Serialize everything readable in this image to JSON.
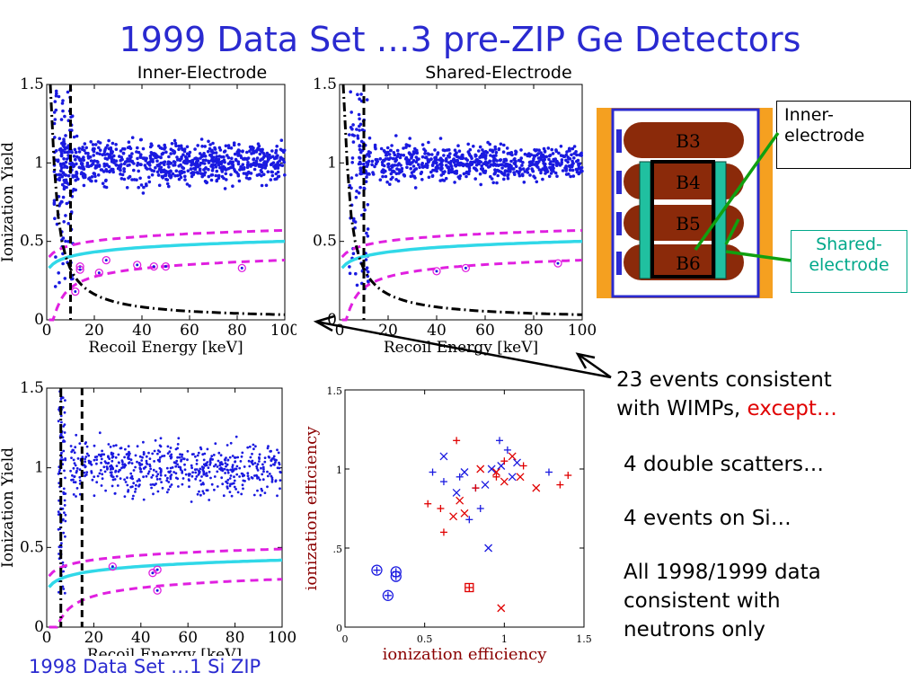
{
  "slide": {
    "title": "1999 Data Set  …3 pre-ZIP Ge Detectors",
    "subtitle_left": "Inner-Electrode",
    "subtitle_right": "Shared-Electrode",
    "bottom_caption": "1998 Data Set  …1 Si ZIP",
    "notes": {
      "line1a": "23 events consistent",
      "line1b_pre": "with WIMPs, ",
      "line1b_red": "except…",
      "line2": "4 double scatters…",
      "line3": "4 events on Si…",
      "line4a": "All 1998/1999 data",
      "line4b": "consistent with",
      "line4c": "neutrons only"
    },
    "detector": {
      "labels": [
        "B3",
        "B4",
        "B5",
        "B6"
      ],
      "callout_inner": [
        "Inner-",
        "electrode"
      ],
      "callout_shared": [
        "Shared-",
        "electrode"
      ]
    },
    "colors": {
      "title": "#2a2ad0",
      "points": "#1a1ae0",
      "magenta": "#e020e0",
      "cyan": "#30d8e8",
      "red": "#e00000",
      "orange": "#f5a020",
      "detector_brown": "#8b2a0a",
      "callout_green": "#00a88a",
      "arrow_green": "#10a010"
    }
  },
  "chart_data": [
    {
      "type": "scatter",
      "panel": "inner-electrode",
      "title": "Inner-Electrode",
      "xlabel": "Recoil Energy [keV]",
      "ylabel": "Ionization Yield",
      "xlim": [
        0,
        100
      ],
      "ylim": [
        0,
        1.5
      ],
      "xticks": [
        "0",
        "20",
        "40",
        "60",
        "80",
        "100"
      ],
      "yticks": [
        "0",
        "0.5",
        "1",
        "1.5"
      ],
      "circled_events": [
        [
          14,
          0.34
        ],
        [
          22,
          0.3
        ],
        [
          25,
          0.38
        ],
        [
          38,
          0.35
        ],
        [
          45,
          0.34
        ],
        [
          50,
          0.34
        ],
        [
          82,
          0.33
        ],
        [
          12,
          0.18
        ],
        [
          14,
          0.32
        ]
      ],
      "curves": [
        "nuclear-recoil band (cyan)",
        "band limits (magenta dashed)",
        "analysis threshold (black dashed)",
        "ionization threshold (black dash-dot)"
      ]
    },
    {
      "type": "scatter",
      "panel": "shared-electrode",
      "title": "Shared-Electrode",
      "xlabel": "Recoil Energy [keV]",
      "ylabel": "",
      "xlim": [
        0,
        100
      ],
      "ylim": [
        0,
        1.5
      ],
      "xticks": [
        "0",
        "20",
        "40",
        "60",
        "80",
        "100"
      ],
      "yticks": [
        "0",
        "0.5",
        "1",
        "1.5"
      ],
      "circled_events": [
        [
          40,
          0.31
        ],
        [
          52,
          0.33
        ],
        [
          90,
          0.36
        ]
      ]
    },
    {
      "type": "scatter",
      "panel": "si-zip-1998",
      "title": "",
      "xlabel": "Recoil Energy [keV]",
      "ylabel": "Ionization Yield",
      "xlim": [
        0,
        100
      ],
      "ylim": [
        0,
        1.5
      ],
      "xticks": [
        "0",
        "20",
        "40",
        "60",
        "80",
        "100"
      ],
      "yticks": [
        "0",
        "0.5",
        "1",
        "1.5"
      ],
      "circled_events": [
        [
          45,
          0.34
        ],
        [
          47,
          0.36
        ],
        [
          28,
          0.38
        ],
        [
          47,
          0.23
        ]
      ]
    },
    {
      "type": "scatter",
      "panel": "ionization-efficiency",
      "xlabel": "ionization efficiency",
      "ylabel": "ionization efficiency",
      "xlim": [
        0,
        1.5
      ],
      "ylim": [
        0,
        1.5
      ],
      "xticks": [
        "0",
        "0.5",
        "1",
        "1.5"
      ],
      "yticks": [
        "0",
        ".5",
        "1",
        "1.5"
      ],
      "series": [
        {
          "name": "",
          "color": "#1a1ae0",
          "marker": "plus",
          "points": [
            [
              0.55,
              0.98
            ],
            [
              0.62,
              0.92
            ],
            [
              0.72,
              0.95
            ],
            [
              0.82,
              0.88
            ],
            [
              0.85,
              0.75
            ],
            [
              0.97,
              1.18
            ],
            [
              1.02,
              1.12
            ],
            [
              1.28,
              0.98
            ],
            [
              0.78,
              0.68
            ]
          ]
        },
        {
          "name": "",
          "color": "#1a1ae0",
          "marker": "x",
          "points": [
            [
              0.62,
              1.08
            ],
            [
              0.75,
              0.98
            ],
            [
              0.88,
              0.9
            ],
            [
              0.92,
              1.0
            ],
            [
              0.98,
              1.02
            ],
            [
              1.05,
              0.95
            ],
            [
              1.08,
              1.04
            ],
            [
              0.9,
              0.5
            ],
            [
              0.7,
              0.85
            ]
          ]
        },
        {
          "name": "",
          "color": "#e00000",
          "marker": "plus",
          "points": [
            [
              0.52,
              0.78
            ],
            [
              0.6,
              0.75
            ],
            [
              0.7,
              1.18
            ],
            [
              0.82,
              0.88
            ],
            [
              0.95,
              0.95
            ],
            [
              1.0,
              1.05
            ],
            [
              1.12,
              1.02
            ],
            [
              1.35,
              0.9
            ],
            [
              1.4,
              0.96
            ],
            [
              0.62,
              0.6
            ]
          ]
        },
        {
          "name": "",
          "color": "#e00000",
          "marker": "x",
          "points": [
            [
              0.68,
              0.7
            ],
            [
              0.75,
              0.72
            ],
            [
              0.85,
              1.0
            ],
            [
              0.95,
              0.98
            ],
            [
              1.0,
              0.92
            ],
            [
              1.05,
              1.08
            ],
            [
              1.1,
              0.95
            ],
            [
              1.2,
              0.88
            ],
            [
              0.98,
              0.12
            ],
            [
              0.72,
              0.8
            ]
          ]
        },
        {
          "name": "",
          "color": "#1a1ae0",
          "marker": "circled",
          "points": [
            [
              0.2,
              0.36
            ],
            [
              0.32,
              0.35
            ],
            [
              0.32,
              0.32
            ],
            [
              0.27,
              0.2
            ]
          ]
        },
        {
          "name": "",
          "color": "#e00000",
          "marker": "boxed",
          "points": [
            [
              0.78,
              0.25
            ]
          ]
        }
      ]
    }
  ]
}
